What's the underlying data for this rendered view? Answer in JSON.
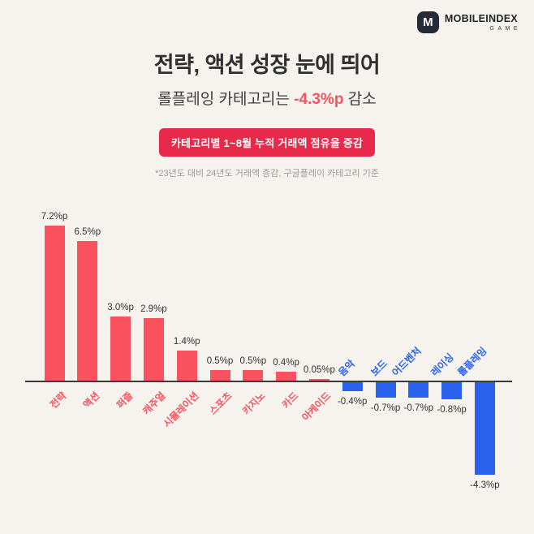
{
  "logo": {
    "letter": "M",
    "name": "MOBILEINDEX",
    "sub": "GAME"
  },
  "header": {
    "title": "전략, 액션 성장 눈에 띄어",
    "subtitle": {
      "prefix": "롤플레잉 카테고리는 ",
      "highlight": "-4.3%p",
      "suffix": " 감소"
    },
    "badge": "카테고리별 1~8월 누적 거래액 점유율 증감",
    "note": "*23년도 대비 24년도 거래액 증감, 구글플레이 카테고리 기준"
  },
  "colors": {
    "positive": "#fa525e",
    "negative": "#2a62ee",
    "badge": "#e7294a",
    "background": "#f6f3ee",
    "axis": "#3b3b3b"
  },
  "chart_data": {
    "type": "bar",
    "title": "카테고리별 1~8월 누적 거래액 점유율 증감",
    "unit": "%p",
    "categories": [
      "전략",
      "액션",
      "퍼즐",
      "캐주얼",
      "시뮬레이션",
      "스포츠",
      "카지노",
      "카드",
      "아케이드",
      "음악",
      "보드",
      "어드벤처",
      "레이싱",
      "롤플레잉"
    ],
    "values": [
      7.2,
      6.5,
      3.0,
      2.9,
      1.4,
      0.5,
      0.5,
      0.4,
      0.05,
      -0.4,
      -0.7,
      -0.7,
      -0.8,
      -4.3
    ],
    "value_labels": [
      "7.2%p",
      "6.5%p",
      "3.0%p",
      "2.9%p",
      "1.4%p",
      "0.5%p",
      "0.5%p",
      "0.4%p",
      "0.05%p",
      "-0.4%p",
      "-0.7%p",
      "-0.7%p",
      "-0.8%p",
      "-4.3%p"
    ],
    "ylim": [
      -5,
      8
    ],
    "baseline": 0,
    "grid": false,
    "legend": false
  }
}
